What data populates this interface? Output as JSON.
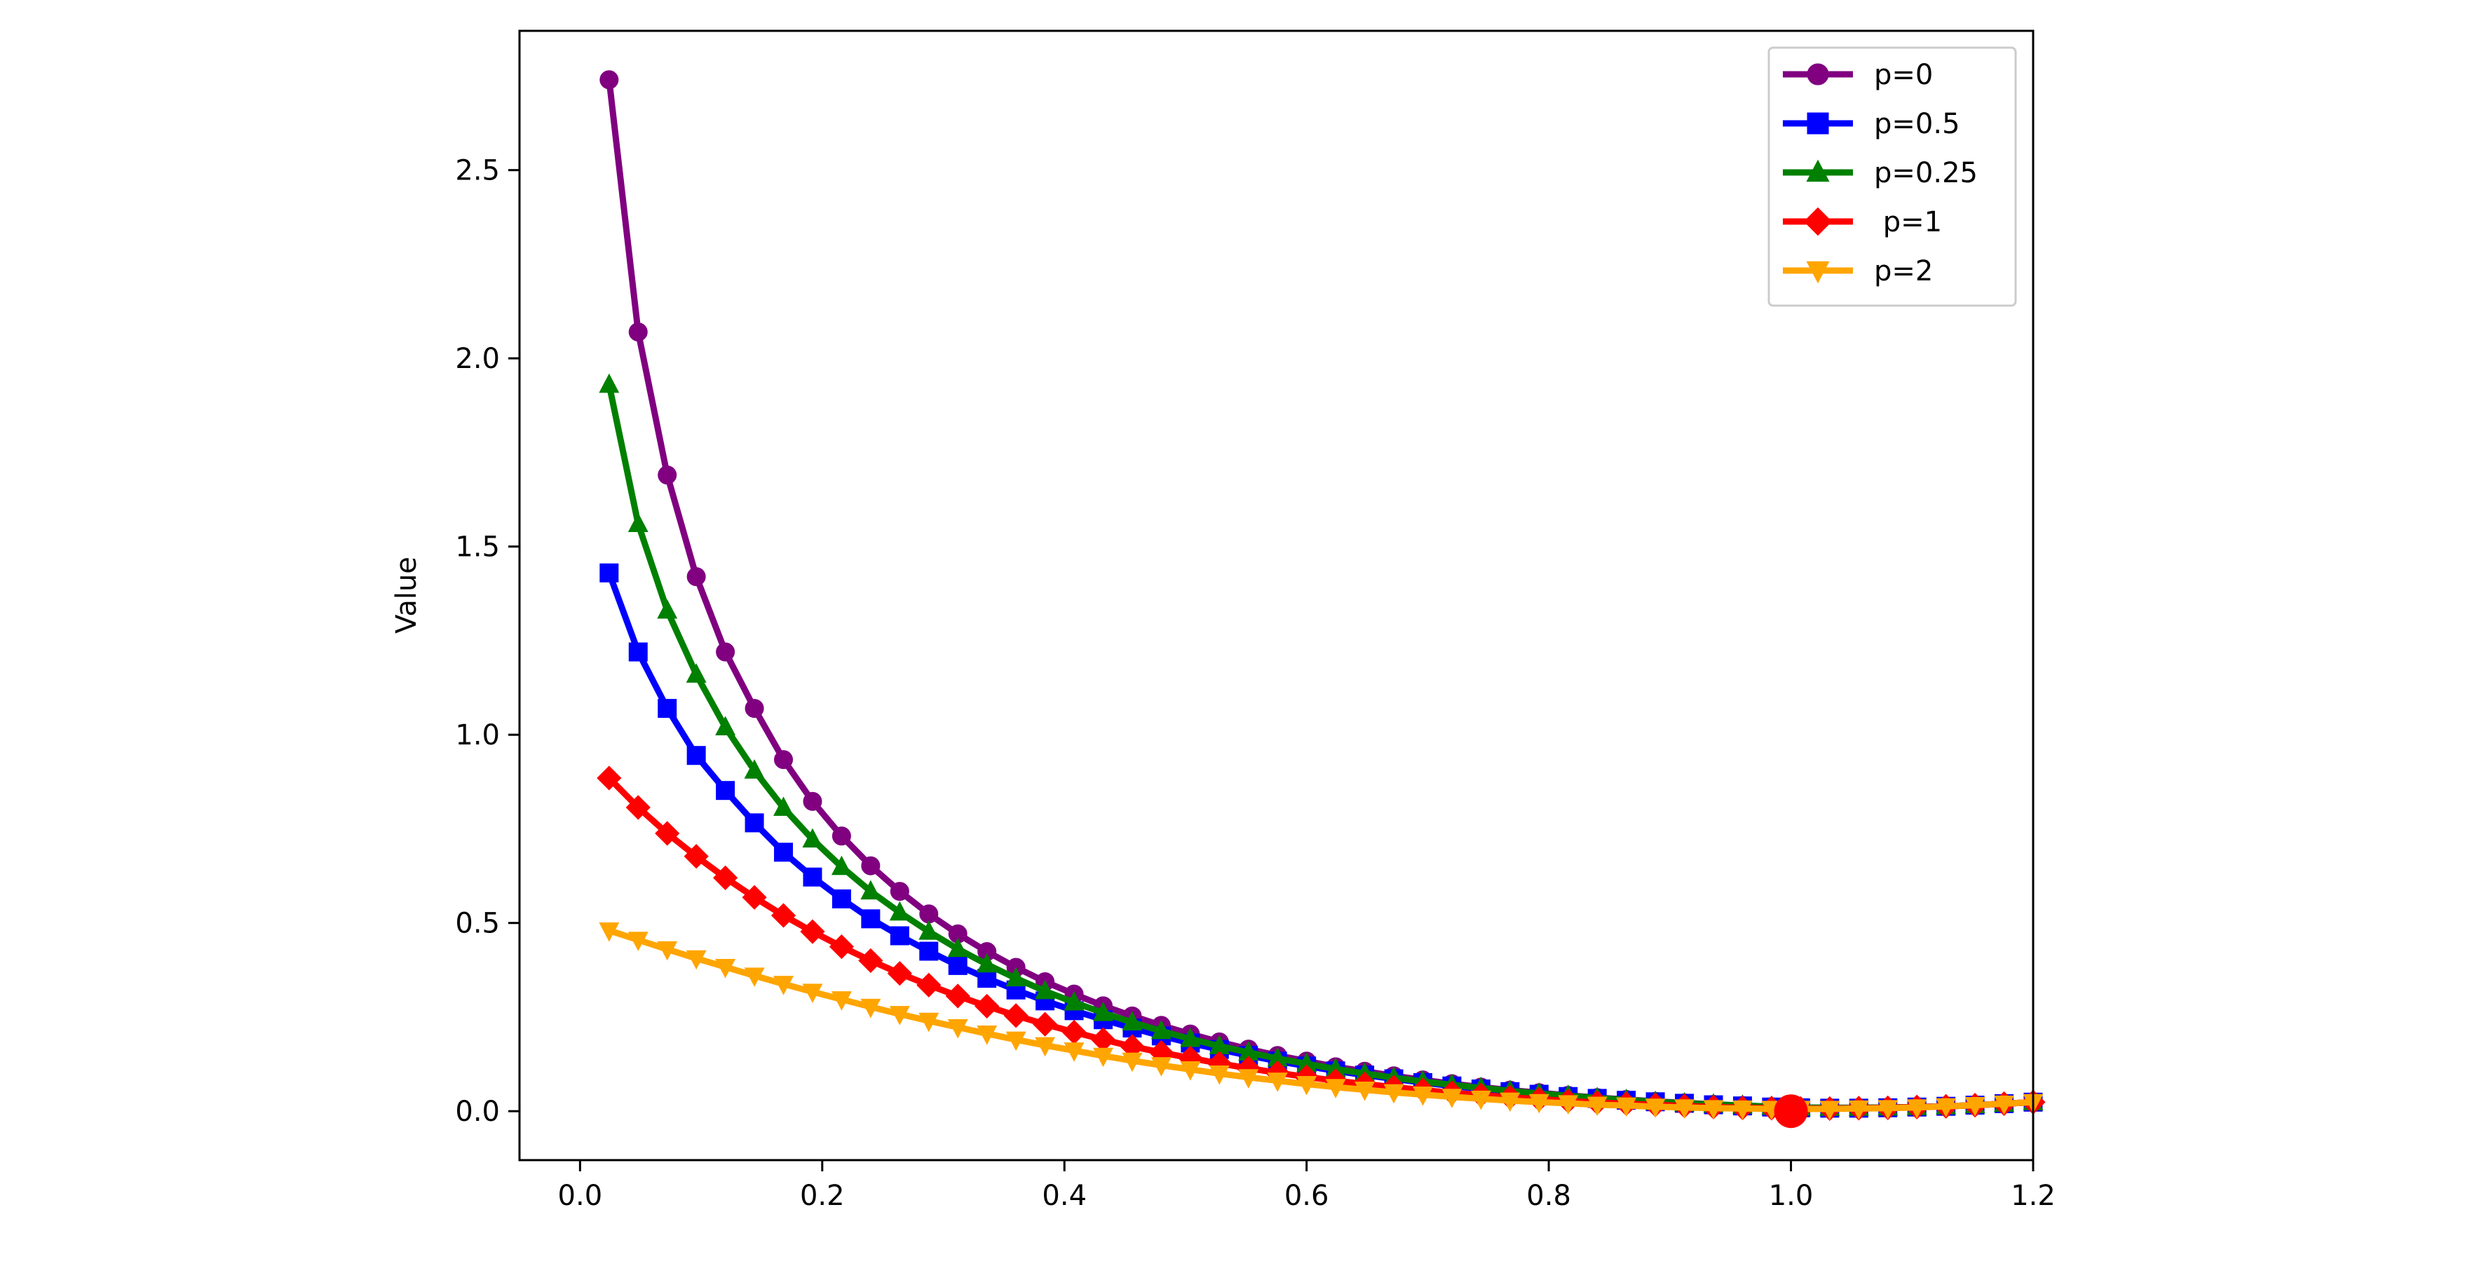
{
  "chart_data": {
    "type": "line",
    "title": "",
    "xlabel": "",
    "ylabel": "Value",
    "xlim": [
      -0.05,
      1.2
    ],
    "ylim": [
      -0.13,
      2.87
    ],
    "xticks": [
      0.0,
      0.2,
      0.4,
      0.6,
      0.8,
      1.0,
      1.2
    ],
    "xtick_labels": [
      "0.0",
      "0.2",
      "0.4",
      "0.6",
      "0.8",
      "1.0",
      "1.2"
    ],
    "yticks": [
      0.0,
      0.5,
      1.0,
      1.5,
      2.0,
      2.5
    ],
    "ytick_labels": [
      "0.0",
      "0.5",
      "1.0",
      "1.5",
      "2.0",
      "2.5"
    ],
    "grid": false,
    "legend_position": "top-right",
    "x": [
      0.024,
      0.048,
      0.072,
      0.096,
      0.12,
      0.144,
      0.168,
      0.192,
      0.216,
      0.24,
      0.264,
      0.288,
      0.312,
      0.336,
      0.36,
      0.384,
      0.408,
      0.432,
      0.456,
      0.48,
      0.504,
      0.528,
      0.552,
      0.576,
      0.6,
      0.624,
      0.648,
      0.672,
      0.696,
      0.72,
      0.744,
      0.768,
      0.792,
      0.816,
      0.84,
      0.864,
      0.888,
      0.912,
      0.936,
      0.96,
      0.984,
      1.008,
      1.032,
      1.056,
      1.08,
      1.104,
      1.128,
      1.152,
      1.176,
      1.2
    ],
    "series": [
      {
        "name": "p=0",
        "color": "#800080",
        "marker": "circle",
        "values": [
          2.74,
          2.07,
          1.69,
          1.42,
          1.22,
          1.07,
          0.934,
          0.823,
          0.731,
          0.652,
          0.584,
          0.524,
          0.471,
          0.424,
          0.382,
          0.344,
          0.311,
          0.28,
          0.253,
          0.228,
          0.205,
          0.184,
          0.165,
          0.148,
          0.133,
          0.118,
          0.106,
          0.094,
          0.083,
          0.073,
          0.064,
          0.056,
          0.049,
          0.042,
          0.036,
          0.031,
          0.026,
          0.022,
          0.018,
          0.015,
          0.012,
          0.01,
          0.009,
          0.009,
          0.01,
          0.011,
          0.013,
          0.016,
          0.02,
          0.024
        ]
      },
      {
        "name": "p=0.5",
        "color": "#0000ff",
        "marker": "square",
        "values": [
          1.43,
          1.22,
          1.07,
          0.945,
          0.852,
          0.766,
          0.688,
          0.622,
          0.564,
          0.511,
          0.466,
          0.425,
          0.387,
          0.353,
          0.322,
          0.293,
          0.267,
          0.243,
          0.221,
          0.2,
          0.181,
          0.164,
          0.148,
          0.133,
          0.12,
          0.107,
          0.096,
          0.086,
          0.076,
          0.067,
          0.059,
          0.052,
          0.045,
          0.039,
          0.034,
          0.029,
          0.025,
          0.021,
          0.017,
          0.014,
          0.011,
          0.009,
          0.008,
          0.008,
          0.009,
          0.011,
          0.013,
          0.016,
          0.02,
          0.024
        ]
      },
      {
        "name": "p=0.25",
        "color": "#008000",
        "marker": "triangle-up",
        "values": [
          1.93,
          1.56,
          1.33,
          1.16,
          1.02,
          0.905,
          0.806,
          0.722,
          0.649,
          0.584,
          0.528,
          0.477,
          0.431,
          0.39,
          0.353,
          0.319,
          0.289,
          0.261,
          0.236,
          0.213,
          0.192,
          0.173,
          0.156,
          0.14,
          0.126,
          0.112,
          0.1,
          0.089,
          0.079,
          0.07,
          0.062,
          0.054,
          0.047,
          0.041,
          0.035,
          0.03,
          0.025,
          0.021,
          0.018,
          0.015,
          0.012,
          0.01,
          0.009,
          0.009,
          0.01,
          0.011,
          0.013,
          0.016,
          0.02,
          0.024
        ]
      },
      {
        "name": " p=1",
        "color": "#ff0000",
        "marker": "diamond",
        "values": [
          0.885,
          0.807,
          0.738,
          0.677,
          0.62,
          0.568,
          0.52,
          0.477,
          0.437,
          0.4,
          0.366,
          0.335,
          0.306,
          0.279,
          0.254,
          0.231,
          0.21,
          0.19,
          0.172,
          0.156,
          0.141,
          0.127,
          0.114,
          0.102,
          0.091,
          0.081,
          0.072,
          0.064,
          0.056,
          0.049,
          0.043,
          0.037,
          0.032,
          0.027,
          0.023,
          0.02,
          0.017,
          0.014,
          0.011,
          0.009,
          0.008,
          0.007,
          0.007,
          0.008,
          0.009,
          0.011,
          0.013,
          0.016,
          0.02,
          0.024
        ]
      },
      {
        "name": "p=2",
        "color": "#ffa500",
        "marker": "triangle-down",
        "values": [
          0.48,
          0.455,
          0.43,
          0.406,
          0.383,
          0.36,
          0.338,
          0.317,
          0.297,
          0.277,
          0.258,
          0.24,
          0.223,
          0.206,
          0.19,
          0.175,
          0.161,
          0.147,
          0.134,
          0.122,
          0.111,
          0.1,
          0.09,
          0.081,
          0.072,
          0.064,
          0.057,
          0.05,
          0.044,
          0.038,
          0.033,
          0.028,
          0.024,
          0.021,
          0.017,
          0.015,
          0.012,
          0.01,
          0.008,
          0.007,
          0.006,
          0.006,
          0.006,
          0.007,
          0.008,
          0.01,
          0.013,
          0.016,
          0.02,
          0.024
        ]
      }
    ],
    "highlight_point": {
      "x": 1.0,
      "y": 0.0,
      "color": "#ff0000"
    }
  }
}
